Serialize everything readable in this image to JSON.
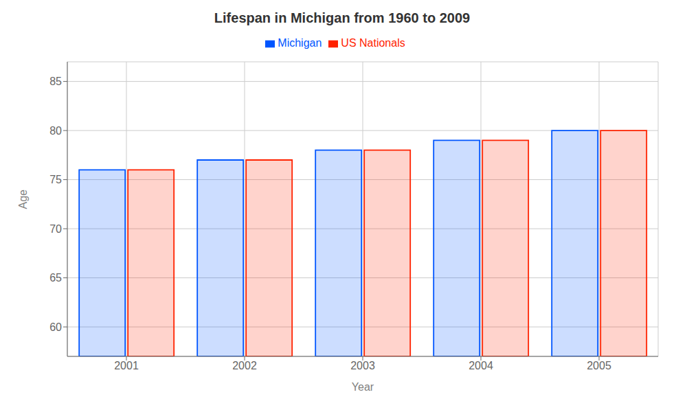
{
  "chart_data": {
    "type": "bar",
    "title": "Lifespan in Michigan from 1960 to 2009",
    "xlabel": "Year",
    "ylabel": "Age",
    "categories": [
      "2001",
      "2002",
      "2003",
      "2004",
      "2005"
    ],
    "series": [
      {
        "name": "Michigan",
        "color": "#0055ff",
        "values": [
          76,
          77,
          78,
          79,
          80
        ]
      },
      {
        "name": "US Nationals",
        "color": "#ff2200",
        "values": [
          76,
          77,
          78,
          79,
          80
        ]
      }
    ],
    "ylim": [
      57,
      87
    ],
    "yticks": [
      60,
      65,
      70,
      75,
      80,
      85
    ],
    "grid": true,
    "legend": "top"
  }
}
